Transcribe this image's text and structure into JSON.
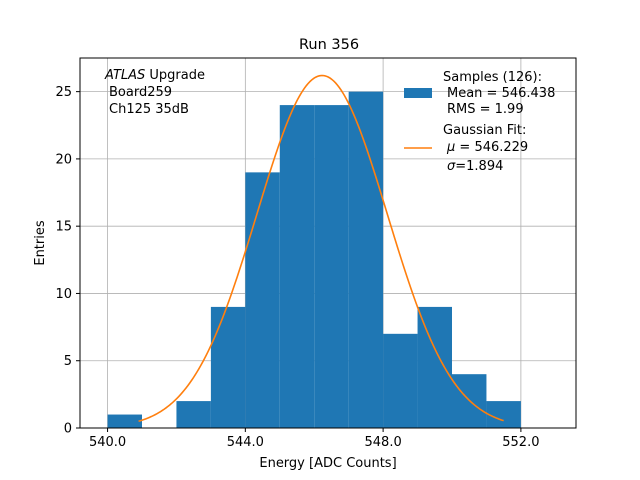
{
  "chart_data": {
    "type": "bar",
    "title": "Run 356",
    "xlabel": "Energy [ADC Counts]",
    "ylabel": "Entries",
    "xlim": [
      539.2,
      553.6
    ],
    "ylim": [
      0,
      27.5
    ],
    "xticks": [
      "540.0",
      "544.0",
      "548.0",
      "552.0"
    ],
    "xtick_values": [
      540,
      544,
      548,
      552
    ],
    "yticks": [
      "0",
      "5",
      "10",
      "15",
      "20",
      "25"
    ],
    "ytick_values": [
      0,
      5,
      10,
      15,
      20,
      25
    ],
    "grid": true,
    "bins": [
      {
        "x0": 540,
        "x1": 541,
        "count": 1
      },
      {
        "x0": 541,
        "x1": 542,
        "count": 0
      },
      {
        "x0": 542,
        "x1": 543,
        "count": 2
      },
      {
        "x0": 543,
        "x1": 544,
        "count": 9
      },
      {
        "x0": 544,
        "x1": 545,
        "count": 19
      },
      {
        "x0": 545,
        "x1": 546,
        "count": 24
      },
      {
        "x0": 546,
        "x1": 547,
        "count": 24
      },
      {
        "x0": 547,
        "x1": 548,
        "count": 25
      },
      {
        "x0": 548,
        "x1": 549,
        "count": 7
      },
      {
        "x0": 549,
        "x1": 550,
        "count": 9
      },
      {
        "x0": 550,
        "x1": 551,
        "count": 4
      },
      {
        "x0": 551,
        "x1": 552,
        "count": 2
      }
    ],
    "fit": {
      "mu": 546.229,
      "sigma": 1.894,
      "peak": 26.2,
      "x_range": [
        540.9,
        551.5
      ]
    },
    "colors": {
      "histogram": "#1f77b4",
      "fit": "#ff7f0e",
      "grid": "#b0b0b0"
    },
    "annotation": {
      "atlas": "ATLAS",
      "upgrade": " Upgrade",
      "board": "Board259",
      "channel": "Ch125 35dB"
    },
    "legend": {
      "placement": "top-right",
      "samples_title": "Samples (126):",
      "samples_mean": "Mean = 546.438",
      "samples_rms": "RMS = 1.99",
      "fit_title": "Gaussian Fit:",
      "fit_mu_symbol": "μ",
      "fit_mu_value": " = 546.229",
      "fit_sigma_symbol": "σ",
      "fit_sigma_value": "=1.894"
    }
  }
}
